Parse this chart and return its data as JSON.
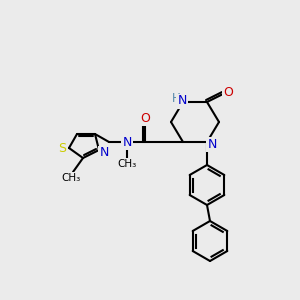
{
  "bg_color": "#ebebeb",
  "bond_color": "#000000",
  "bond_lw": 1.5,
  "figsize": [
    3.0,
    3.0
  ],
  "dpi": 100,
  "atom_colors": {
    "S": "#cccc00",
    "N": "#0000cc",
    "O": "#cc0000",
    "NH": "#5588aa",
    "H": "#5588aa"
  }
}
